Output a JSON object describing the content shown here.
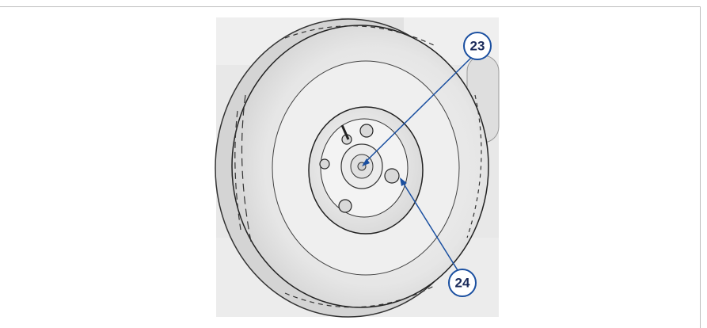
{
  "callouts": [
    {
      "label": "23"
    },
    {
      "label": "24"
    }
  ]
}
